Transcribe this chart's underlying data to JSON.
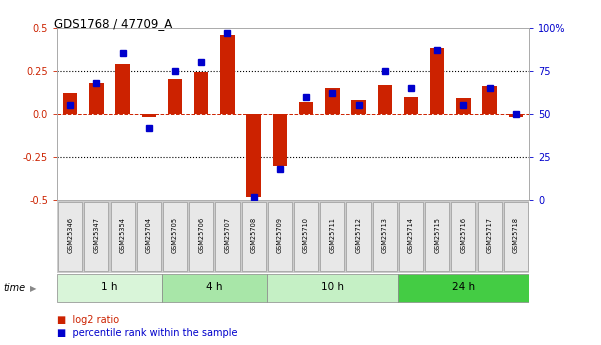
{
  "title": "GDS1768 / 47709_A",
  "samples": [
    "GSM25346",
    "GSM25347",
    "GSM25354",
    "GSM25704",
    "GSM25705",
    "GSM25706",
    "GSM25707",
    "GSM25708",
    "GSM25709",
    "GSM25710",
    "GSM25711",
    "GSM25712",
    "GSM25713",
    "GSM25714",
    "GSM25715",
    "GSM25716",
    "GSM25717",
    "GSM25718"
  ],
  "log2_ratio": [
    0.12,
    0.18,
    0.29,
    -0.02,
    0.2,
    0.24,
    0.46,
    -0.48,
    -0.3,
    0.07,
    0.15,
    0.08,
    0.17,
    0.1,
    0.38,
    0.09,
    0.16,
    -0.02
  ],
  "percentile": [
    55,
    68,
    85,
    42,
    75,
    80,
    97,
    2,
    18,
    60,
    62,
    55,
    75,
    65,
    87,
    55,
    65,
    50
  ],
  "groups": [
    {
      "label": "1 h",
      "start": 0,
      "end": 4,
      "color": "#d9f5d9"
    },
    {
      "label": "4 h",
      "start": 4,
      "end": 8,
      "color": "#a8e6a8"
    },
    {
      "label": "10 h",
      "start": 8,
      "end": 13,
      "color": "#c5f0c5"
    },
    {
      "label": "24 h",
      "start": 13,
      "end": 18,
      "color": "#44cc44"
    }
  ],
  "bar_color": "#cc2200",
  "dot_color": "#0000cc",
  "ylim_left": [
    -0.5,
    0.5
  ],
  "ylim_right": [
    0,
    100
  ],
  "yticks_left": [
    -0.5,
    -0.25,
    0.0,
    0.25,
    0.5
  ],
  "yticks_right": [
    0,
    25,
    50,
    75,
    100
  ],
  "background_color": "#ffffff",
  "bar_width": 0.55,
  "legend_red": "log2 ratio",
  "legend_blue": "percentile rank within the sample"
}
